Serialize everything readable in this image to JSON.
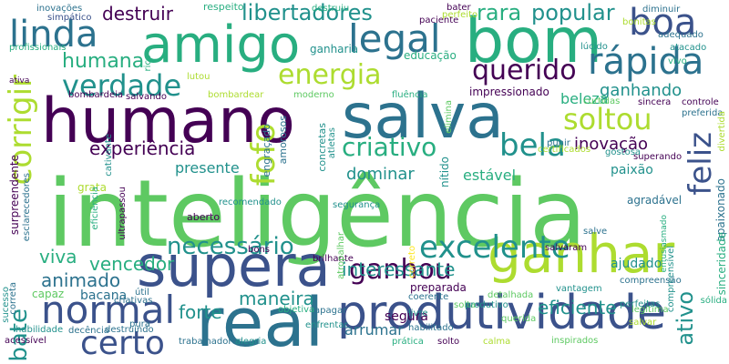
{
  "palette": {
    "deep_purple": "#440154",
    "indigo": "#3b528b",
    "teal_blue": "#2c728e",
    "teal": "#21918c",
    "green_teal": "#28ae80",
    "green": "#5ec962",
    "lime": "#addc30",
    "yellow": "#fde725"
  },
  "words": [
    "inteligência",
    "ganhar",
    "real",
    "supera",
    "humano",
    "salva",
    "bom",
    "amigo",
    "produtividade",
    "normal",
    "certo",
    "linda",
    "legal",
    "boa",
    "verdade",
    "rápida",
    "corrigir",
    "querido",
    "soltou",
    "feliz",
    "bela",
    "excelente",
    "ganhou",
    "energia",
    "libertadores",
    "necessário",
    "experiência",
    "criativo",
    "fofo",
    "popular",
    "rara",
    "destruir",
    "humana",
    "maneira",
    "interessante",
    "vencedor",
    "animado",
    "viva",
    "forte",
    "eficiente",
    "ativo",
    "dominar",
    "estável",
    "inovação",
    "ganhando",
    "presente",
    "arrumar",
    "bate",
    "bacana",
    "beleza",
    "ganharia",
    "educação",
    "impressionado",
    "entusiasmado",
    "paixão",
    "apaixonado",
    "superando",
    "nítido",
    "segura",
    "ajudado",
    "preparada",
    "surpreendente",
    "sinceridade",
    "agradável",
    "bons",
    "aberto",
    "respeito",
    "destruiu",
    "paciente",
    "bater",
    "adequado",
    "diminuir",
    "atacado",
    "vivo",
    "lúcido",
    "bonitas",
    "perfeito",
    "simpático",
    "inovações",
    "profissionais",
    "rico",
    "lutou",
    "ativa",
    "bombardeia",
    "salvando",
    "bombardear",
    "moderno",
    "fluência",
    "curtidas",
    "sincera",
    "controle",
    "preferida",
    "divertida",
    "punir",
    "gostosa",
    "certificados",
    "grata",
    "ultrapassou",
    "recomendado",
    "engraçado",
    "amorosos",
    "concretas",
    "atletas",
    "segurança",
    "elimina",
    "cativante",
    "esclarecedores",
    "eficiência",
    "correta",
    "sucesso",
    "capaz",
    "útil",
    "criativas",
    "objetiva",
    "apagar",
    "enfrentar",
    "habilitado",
    "livre",
    "querida",
    "legítima",
    "perfeitas",
    "sólida",
    "salvar",
    "compreensível",
    "compreensão",
    "vantagem",
    "salvaram",
    "salve",
    "brilhante",
    "atropalhar",
    "coerente",
    "solta",
    "produtivo",
    "detalhada",
    "correto",
    "destruindo",
    "decência",
    "pura",
    "habilidade",
    "acessível",
    "trabalhadores",
    "alegria",
    "prática",
    "solto",
    "calma",
    "inspirados"
  ]
}
